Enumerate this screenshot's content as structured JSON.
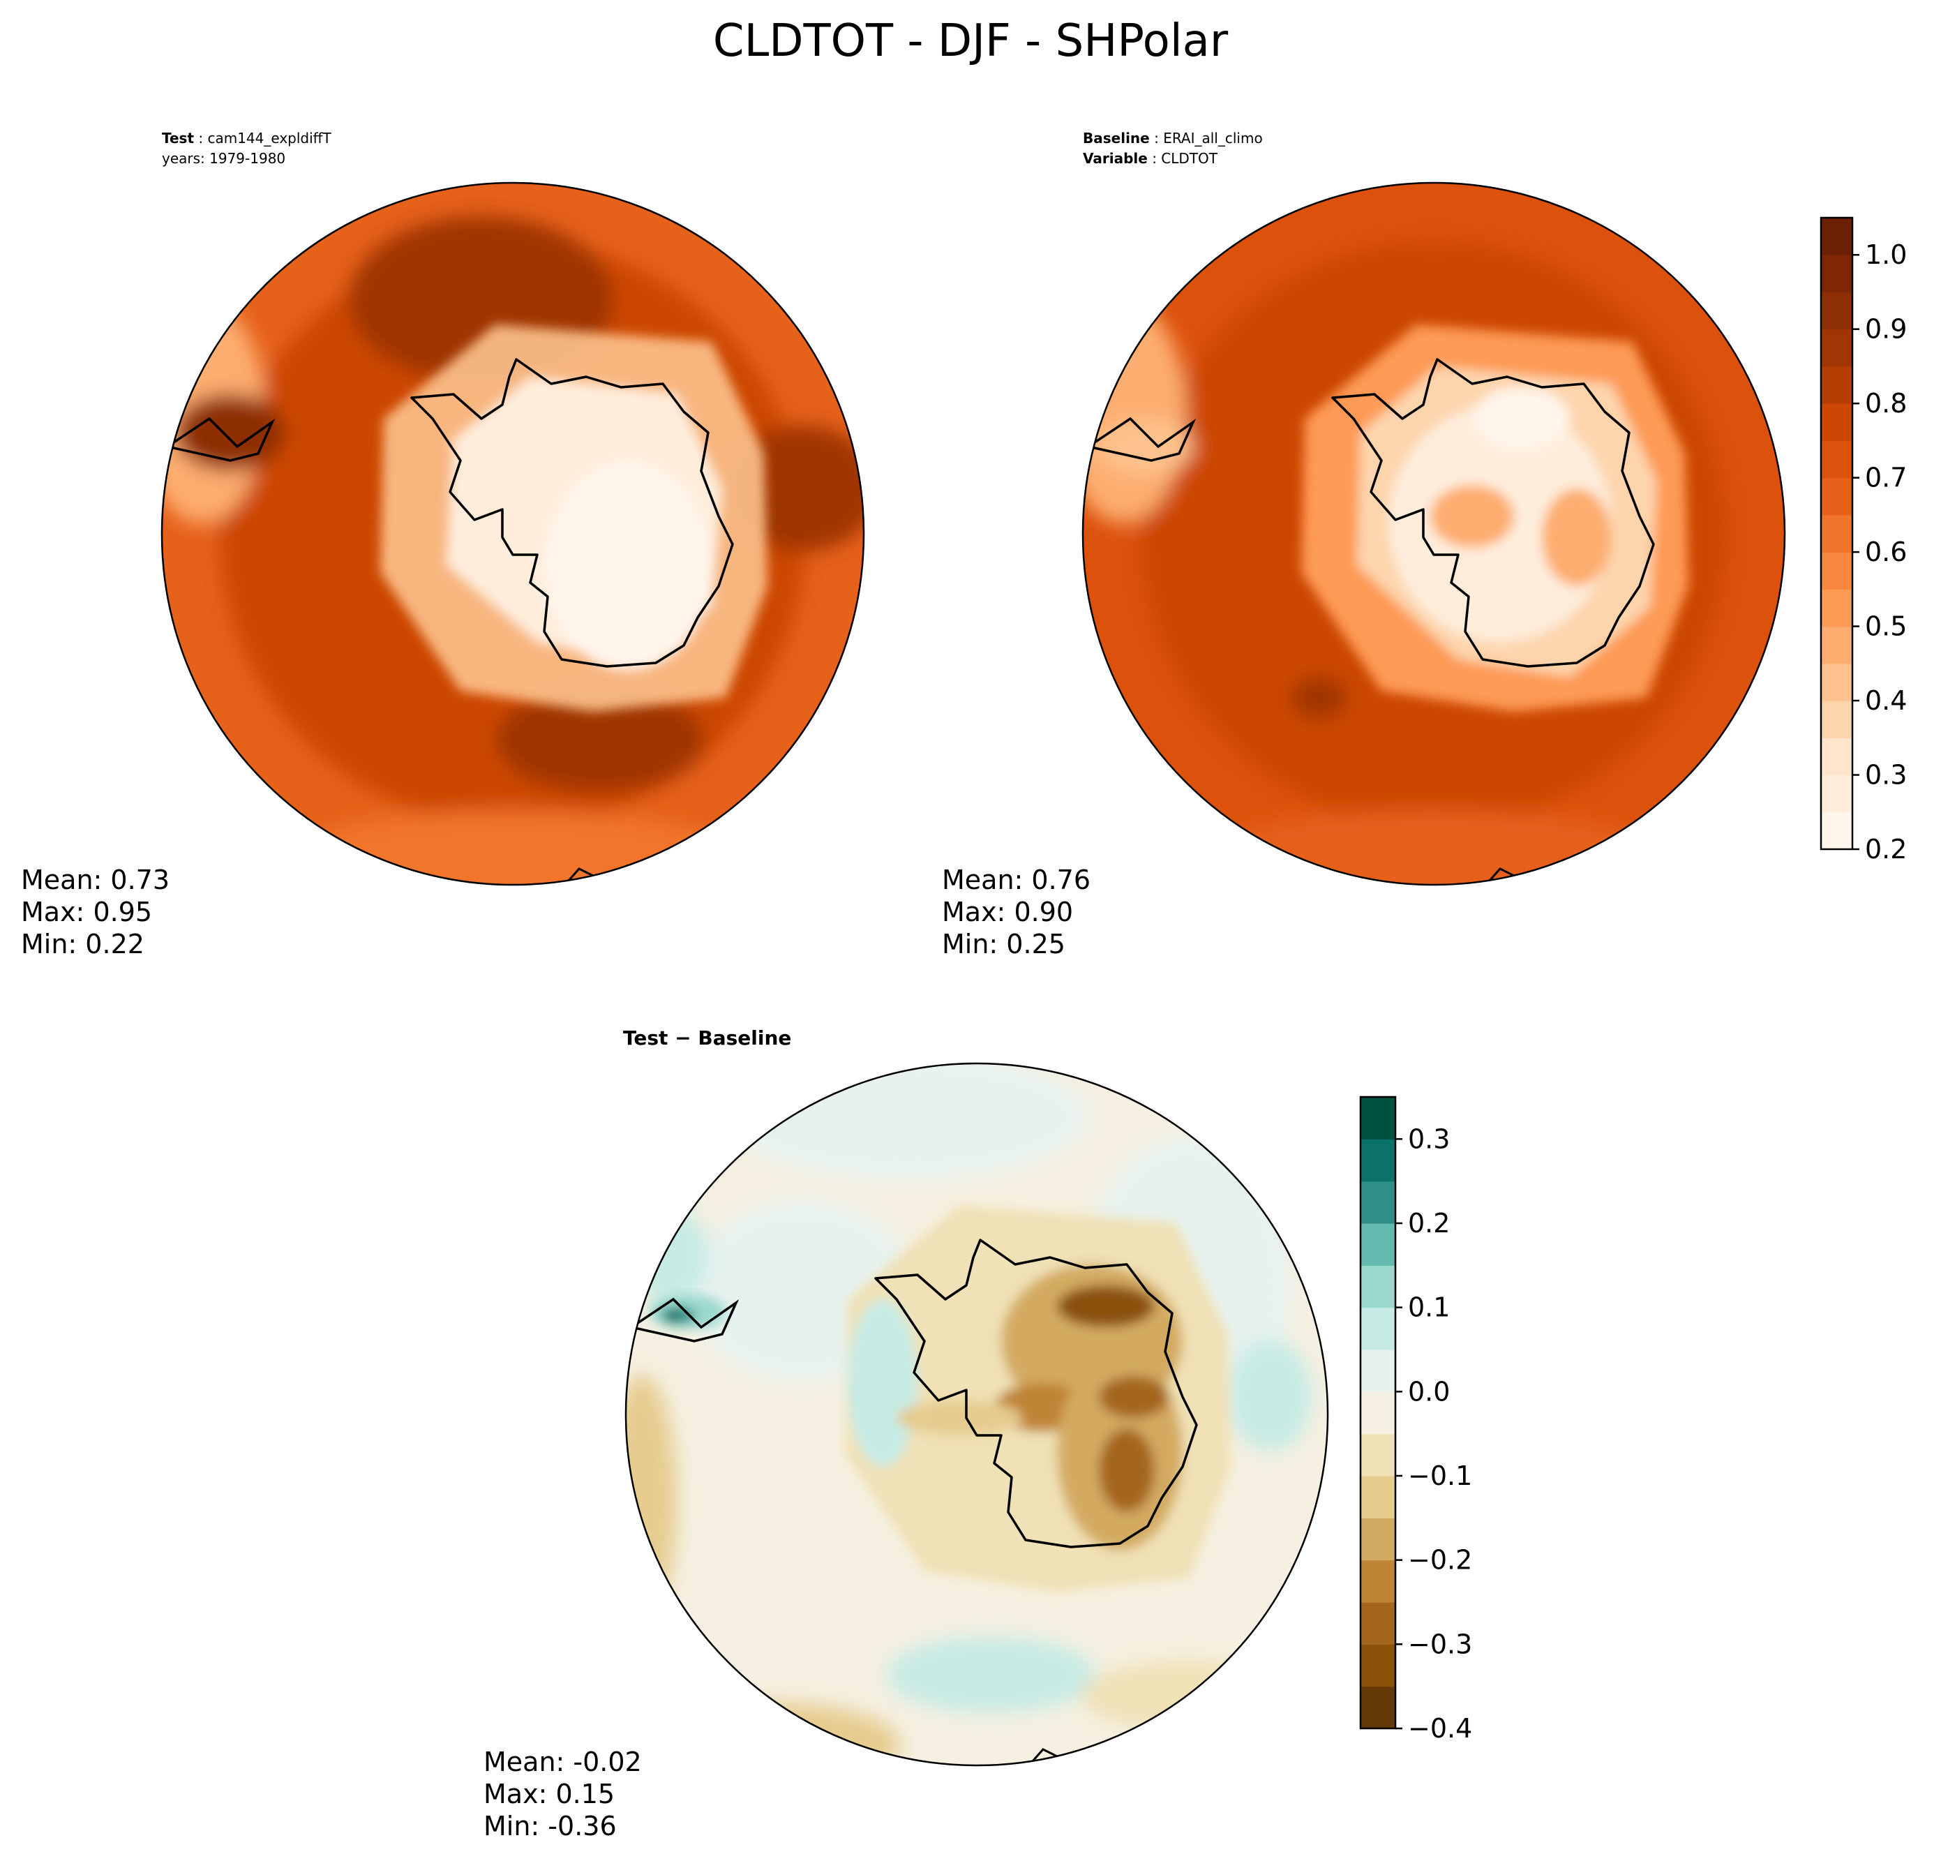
{
  "figure": {
    "title": "CLDTOT - DJF - SHPolar"
  },
  "chart_data": [
    {
      "type": "heatmap",
      "projection": "south-polar-stereographic",
      "panel": "test",
      "header_lines": [
        {
          "key": "Test",
          "value": "cam144_expldiffT"
        },
        {
          "key": "",
          "value": "years: 1979-1980"
        }
      ],
      "stats": {
        "mean": "Mean:  0.73",
        "max": "Max:  0.95",
        "min": "Min:  0.22"
      },
      "colormap": "Oranges",
      "field_range": [
        0.22,
        0.95
      ]
    },
    {
      "type": "heatmap",
      "projection": "south-polar-stereographic",
      "panel": "baseline",
      "header_lines": [
        {
          "key": "Baseline",
          "value": "ERAI_all_climo"
        },
        {
          "key": "Variable",
          "value": "CLDTOT"
        }
      ],
      "stats": {
        "mean": "Mean:  0.76",
        "max": "Max:  0.90",
        "min": "Min:  0.25"
      },
      "colormap": "Oranges",
      "field_range": [
        0.25,
        0.9
      ],
      "colorbar": {
        "range": [
          0.2,
          1.05
        ],
        "levels": [
          0.2,
          0.25,
          0.3,
          0.35,
          0.4,
          0.45,
          0.5,
          0.55,
          0.6,
          0.65,
          0.7,
          0.75,
          0.8,
          0.85,
          0.9,
          0.95,
          1.0,
          1.05
        ],
        "ticks": [
          "0.2",
          "0.3",
          "0.4",
          "0.5",
          "0.6",
          "0.7",
          "0.8",
          "0.9",
          "1.0"
        ],
        "colors": [
          "#fff5eb",
          "#feeddb",
          "#fee5cb",
          "#fdd5ad",
          "#fdc28d",
          "#fdad6f",
          "#fd9a54",
          "#f8873f",
          "#f1742c",
          "#e6611a",
          "#dc520d",
          "#cc4704",
          "#b43e03",
          "#9f3603",
          "#8d2e04",
          "#7f2704",
          "#6c2003"
        ]
      }
    },
    {
      "type": "heatmap",
      "projection": "south-polar-stereographic",
      "panel": "difference",
      "header_lines": [
        {
          "key": "Test − Baseline",
          "value": ""
        }
      ],
      "stats": {
        "mean": "Mean: -0.02",
        "max": "Max:  0.15",
        "min": "Min: -0.36"
      },
      "colormap": "BrBG",
      "field_range": [
        -0.36,
        0.15
      ],
      "colorbar": {
        "range": [
          -0.4,
          0.35
        ],
        "levels": [
          -0.4,
          -0.35,
          -0.3,
          -0.25,
          -0.2,
          -0.15,
          -0.1,
          -0.05,
          0.0,
          0.05,
          0.1,
          0.15,
          0.2,
          0.25,
          0.3,
          0.35
        ],
        "ticks": [
          "−0.4",
          "−0.3",
          "−0.2",
          "−0.1",
          "0.0",
          "0.1",
          "0.2",
          "0.3"
        ],
        "colors": [
          "#653a08",
          "#8a510b",
          "#a4661c",
          "#bf8436",
          "#d3aa61",
          "#e6cc8f",
          "#f0e1b6",
          "#f5f0e1",
          "#e7f2ef",
          "#c6ebe5",
          "#9ad8ce",
          "#63b9ad",
          "#2f8f87",
          "#0c7168",
          "#01513f"
        ]
      }
    }
  ]
}
